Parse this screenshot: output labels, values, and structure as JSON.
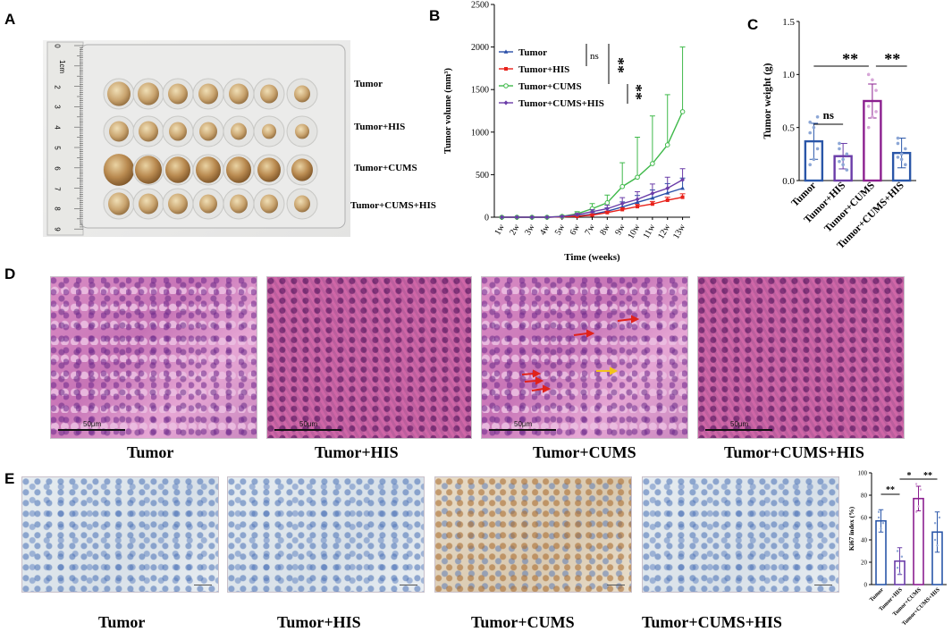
{
  "panels": {
    "A": {
      "letter": "A",
      "row_labels": [
        "Tumor",
        "Tumor+HIS",
        "Tumor+CUMS",
        "Tumor+CUMS+HIS"
      ],
      "ruler_numbers": [
        "0",
        "1cm",
        "2",
        "3",
        "4",
        "5",
        "6",
        "7",
        "8",
        "9"
      ]
    },
    "B": {
      "letter": "B"
    },
    "C": {
      "letter": "C"
    },
    "D": {
      "letter": "D",
      "captions": [
        "Tumor",
        "Tumor+HIS",
        "Tumor+CUMS",
        "Tumor+CUMS+HIS"
      ],
      "scale_label": "50μm"
    },
    "E": {
      "letter": "E",
      "captions": [
        "Tumor",
        "Tumor+HIS",
        "Tumor+CUMS",
        "Tumor+CUMS+HIS"
      ]
    }
  },
  "chart_data": [
    {
      "panel": "B",
      "type": "line",
      "xlabel": "Time    (weeks)",
      "ylabel": "Tumor volume (mm³)",
      "categories": [
        "1w",
        "2w",
        "3w",
        "4w",
        "5w",
        "6w",
        "7w",
        "8w",
        "9w",
        "10w",
        "11w",
        "12w",
        "13w"
      ],
      "ylim": [
        0,
        2500
      ],
      "yticks": [
        0,
        500,
        1000,
        1500,
        2000,
        2500
      ],
      "legend_placement": "top-left",
      "series": [
        {
          "name": "Tumor",
          "color": "#2a4fa8",
          "marker": "triangle",
          "values": [
            0,
            0,
            0,
            0,
            5,
            15,
            35,
            70,
            120,
            175,
            225,
            285,
            340
          ],
          "errors": [
            0,
            0,
            0,
            0,
            5,
            10,
            20,
            40,
            60,
            80,
            95,
            110,
            120
          ]
        },
        {
          "name": "Tumor+HIS",
          "color": "#e8221b",
          "marker": "square",
          "values": [
            0,
            0,
            0,
            0,
            5,
            10,
            25,
            55,
            90,
            125,
            155,
            200,
            235
          ],
          "errors": [
            0,
            0,
            0,
            0,
            3,
            5,
            10,
            15,
            20,
            25,
            30,
            35,
            40
          ]
        },
        {
          "name": "Tumor+CUMS",
          "color": "#3fb94a",
          "marker": "circle",
          "values": [
            0,
            0,
            0,
            0,
            10,
            40,
            100,
            170,
            360,
            470,
            630,
            850,
            1240
          ],
          "errors": [
            0,
            0,
            0,
            0,
            10,
            25,
            60,
            90,
            280,
            470,
            560,
            590,
            760
          ]
        },
        {
          "name": "Tumor+CUMS+HIS",
          "color": "#6a3ca8",
          "marker": "diamond",
          "values": [
            0,
            0,
            0,
            0,
            8,
            30,
            65,
            100,
            160,
            210,
            280,
            340,
            440
          ],
          "errors": [
            0,
            0,
            0,
            0,
            5,
            15,
            25,
            40,
            70,
            90,
            110,
            130,
            130
          ]
        }
      ],
      "annotations": [
        "ns",
        "**",
        "**"
      ]
    },
    {
      "panel": "C",
      "type": "bar",
      "ylabel": "Tumor weight (g)",
      "categories": [
        "Tumor",
        "Tumor+HIS",
        "Tumor+CUMS",
        "Tumor+CUMS+HIS"
      ],
      "values": [
        0.37,
        0.23,
        0.75,
        0.26
      ],
      "errors": [
        0.17,
        0.12,
        0.16,
        0.14
      ],
      "colors": [
        "#2a56a8",
        "#6a3ca8",
        "#8b1f8f",
        "#2a56a8"
      ],
      "points": [
        [
          0.55,
          0.5,
          0.3,
          0.15,
          0.2,
          0.6,
          0.45
        ],
        [
          0.3,
          0.15,
          0.1,
          0.35,
          0.2,
          0.25,
          0.18
        ],
        [
          1.0,
          0.6,
          0.85,
          0.7,
          0.95,
          0.65,
          0.5
        ],
        [
          0.4,
          0.2,
          0.15,
          0.35,
          0.25,
          0.3,
          0.22
        ]
      ],
      "ylim": [
        0,
        1.5
      ],
      "yticks": [
        "0.0",
        "0.5",
        "1.0",
        "1.5"
      ],
      "annotations": [
        "ns",
        "**",
        "**"
      ]
    },
    {
      "panel": "E",
      "type": "bar",
      "ylabel": "Ki67 index (%)",
      "categories": [
        "Tumor",
        "Tumor+HIS",
        "Tumor+CUMS",
        "Tumor+CUMS+HIS"
      ],
      "values": [
        57,
        21,
        77,
        47
      ],
      "errors": [
        10,
        12,
        11,
        18
      ],
      "colors": [
        "#2a56a8",
        "#6a3ca8",
        "#8b1f8f",
        "#2a56a8"
      ],
      "points": [
        [
          65,
          50,
          55,
          60
        ],
        [
          30,
          10,
          25,
          15
        ],
        [
          90,
          70,
          85,
          65
        ],
        [
          55,
          35,
          60,
          40
        ]
      ],
      "ylim": [
        0,
        100
      ],
      "yticks": [
        "0",
        "20",
        "40",
        "60",
        "80",
        "100"
      ],
      "annotations": [
        "**",
        "*",
        "**"
      ]
    }
  ]
}
